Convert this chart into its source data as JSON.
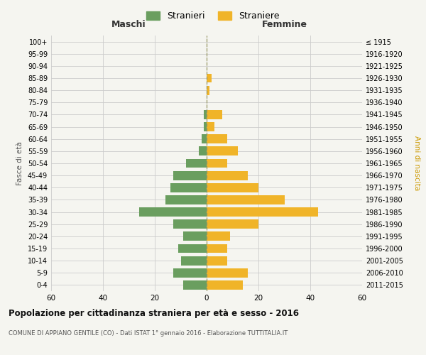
{
  "age_groups": [
    "0-4",
    "5-9",
    "10-14",
    "15-19",
    "20-24",
    "25-29",
    "30-34",
    "35-39",
    "40-44",
    "45-49",
    "50-54",
    "55-59",
    "60-64",
    "65-69",
    "70-74",
    "75-79",
    "80-84",
    "85-89",
    "90-94",
    "95-99",
    "100+"
  ],
  "birth_years": [
    "2011-2015",
    "2006-2010",
    "2001-2005",
    "1996-2000",
    "1991-1995",
    "1986-1990",
    "1981-1985",
    "1976-1980",
    "1971-1975",
    "1966-1970",
    "1961-1965",
    "1956-1960",
    "1951-1955",
    "1946-1950",
    "1941-1945",
    "1936-1940",
    "1931-1935",
    "1926-1930",
    "1921-1925",
    "1916-1920",
    "≤ 1915"
  ],
  "maschi": [
    9,
    13,
    10,
    11,
    9,
    13,
    26,
    16,
    14,
    13,
    8,
    3,
    2,
    1,
    1,
    0,
    0,
    0,
    0,
    0,
    0
  ],
  "femmine": [
    14,
    16,
    8,
    8,
    9,
    20,
    43,
    30,
    20,
    16,
    8,
    12,
    8,
    3,
    6,
    0,
    1,
    2,
    0,
    0,
    0
  ],
  "maschi_color": "#6a9e5f",
  "femmine_color": "#f0b429",
  "background_color": "#f5f5f0",
  "grid_color": "#cccccc",
  "title": "Popolazione per cittadinanza straniera per età e sesso - 2016",
  "subtitle": "COMUNE DI APPIANO GENTILE (CO) - Dati ISTAT 1° gennaio 2016 - Elaborazione TUTTITALIA.IT",
  "xlabel_left": "Maschi",
  "xlabel_right": "Femmine",
  "ylabel_left": "Fasce di età",
  "ylabel_right": "Anni di nascita",
  "legend_maschi": "Stranieri",
  "legend_femmine": "Straniere",
  "xlim": 60,
  "bar_height": 0.75
}
